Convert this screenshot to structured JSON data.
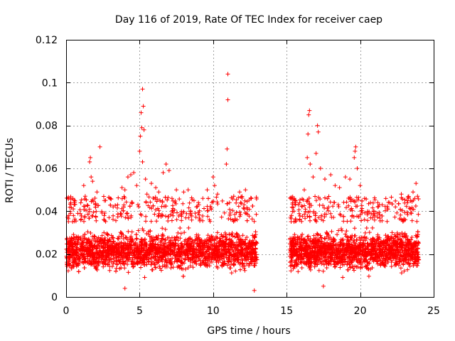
{
  "chart_data": {
    "type": "scatter",
    "title": "Day 116 of 2019, Rate Of TEC Index for receiver caep",
    "xlabel": "GPS time / hours",
    "ylabel": "ROTI / TECUs",
    "xlim": [
      0,
      25
    ],
    "ylim": [
      0,
      0.12
    ],
    "xticks": [
      0,
      5,
      10,
      15,
      20,
      25
    ],
    "xtick_labels": [
      "0",
      "5",
      "10",
      "15",
      "20",
      "25"
    ],
    "yticks": [
      0,
      0.02,
      0.04,
      0.06,
      0.08,
      0.1,
      0.12
    ],
    "ytick_labels": [
      "0",
      "0.02",
      "0.04",
      "0.06",
      "0.08",
      "0.1",
      "0.12"
    ],
    "grid": true,
    "marker": "+",
    "color": "#ff0000",
    "data_gap_hours": [
      13.0,
      15.2
    ],
    "series": [
      {
        "name": "ROTI",
        "density_segments": [
          {
            "x_start": 0.0,
            "x_end": 13.0,
            "typical_range": [
              0.008,
              0.035
            ],
            "count": 2600
          },
          {
            "x_start": 15.2,
            "x_end": 24.0,
            "typical_range": [
              0.008,
              0.035
            ],
            "count": 1800
          }
        ],
        "spikes": [
          {
            "x": 0.3,
            "y": 0.039
          },
          {
            "x": 0.5,
            "y": 0.038
          },
          {
            "x": 0.8,
            "y": 0.039
          },
          {
            "x": 1.2,
            "y": 0.052
          },
          {
            "x": 1.3,
            "y": 0.047
          },
          {
            "x": 1.6,
            "y": 0.063
          },
          {
            "x": 1.65,
            "y": 0.065
          },
          {
            "x": 1.7,
            "y": 0.056
          },
          {
            "x": 1.8,
            "y": 0.054
          },
          {
            "x": 2.3,
            "y": 0.07
          },
          {
            "x": 2.1,
            "y": 0.049
          },
          {
            "x": 2.6,
            "y": 0.045
          },
          {
            "x": 3.0,
            "y": 0.046
          },
          {
            "x": 3.2,
            "y": 0.042
          },
          {
            "x": 3.5,
            "y": 0.043
          },
          {
            "x": 3.8,
            "y": 0.051
          },
          {
            "x": 4.0,
            "y": 0.05
          },
          {
            "x": 4.2,
            "y": 0.056
          },
          {
            "x": 4.4,
            "y": 0.057
          },
          {
            "x": 4.6,
            "y": 0.058
          },
          {
            "x": 4.8,
            "y": 0.052
          },
          {
            "x": 5.0,
            "y": 0.068
          },
          {
            "x": 5.05,
            "y": 0.075
          },
          {
            "x": 5.1,
            "y": 0.086
          },
          {
            "x": 5.15,
            "y": 0.079
          },
          {
            "x": 5.2,
            "y": 0.097
          },
          {
            "x": 5.25,
            "y": 0.089
          },
          {
            "x": 5.3,
            "y": 0.078
          },
          {
            "x": 5.2,
            "y": 0.063
          },
          {
            "x": 5.4,
            "y": 0.055
          },
          {
            "x": 5.5,
            "y": 0.048
          },
          {
            "x": 5.8,
            "y": 0.053
          },
          {
            "x": 6.1,
            "y": 0.051
          },
          {
            "x": 6.3,
            "y": 0.049
          },
          {
            "x": 6.6,
            "y": 0.058
          },
          {
            "x": 6.8,
            "y": 0.062
          },
          {
            "x": 7.0,
            "y": 0.059
          },
          {
            "x": 7.2,
            "y": 0.046
          },
          {
            "x": 7.5,
            "y": 0.05
          },
          {
            "x": 8.0,
            "y": 0.049
          },
          {
            "x": 8.3,
            "y": 0.05
          },
          {
            "x": 8.7,
            "y": 0.045
          },
          {
            "x": 9.0,
            "y": 0.044
          },
          {
            "x": 9.3,
            "y": 0.046
          },
          {
            "x": 9.6,
            "y": 0.05
          },
          {
            "x": 10.0,
            "y": 0.056
          },
          {
            "x": 10.1,
            "y": 0.052
          },
          {
            "x": 10.3,
            "y": 0.048
          },
          {
            "x": 10.9,
            "y": 0.062
          },
          {
            "x": 10.95,
            "y": 0.069
          },
          {
            "x": 11.0,
            "y": 0.092
          },
          {
            "x": 11.0,
            "y": 0.104
          },
          {
            "x": 11.4,
            "y": 0.047
          },
          {
            "x": 11.8,
            "y": 0.049
          },
          {
            "x": 12.2,
            "y": 0.05
          },
          {
            "x": 12.6,
            "y": 0.046
          },
          {
            "x": 15.5,
            "y": 0.04
          },
          {
            "x": 15.8,
            "y": 0.043
          },
          {
            "x": 16.2,
            "y": 0.05
          },
          {
            "x": 16.4,
            "y": 0.065
          },
          {
            "x": 16.45,
            "y": 0.076
          },
          {
            "x": 16.5,
            "y": 0.085
          },
          {
            "x": 16.55,
            "y": 0.087
          },
          {
            "x": 16.6,
            "y": 0.062
          },
          {
            "x": 16.8,
            "y": 0.056
          },
          {
            "x": 17.0,
            "y": 0.067
          },
          {
            "x": 17.1,
            "y": 0.08
          },
          {
            "x": 17.15,
            "y": 0.077
          },
          {
            "x": 17.3,
            "y": 0.06
          },
          {
            "x": 17.6,
            "y": 0.055
          },
          {
            "x": 18.0,
            "y": 0.057
          },
          {
            "x": 18.3,
            "y": 0.052
          },
          {
            "x": 18.6,
            "y": 0.051
          },
          {
            "x": 19.0,
            "y": 0.056
          },
          {
            "x": 19.3,
            "y": 0.055
          },
          {
            "x": 19.6,
            "y": 0.065
          },
          {
            "x": 19.65,
            "y": 0.068
          },
          {
            "x": 19.7,
            "y": 0.07
          },
          {
            "x": 19.8,
            "y": 0.06
          },
          {
            "x": 20.0,
            "y": 0.052
          },
          {
            "x": 20.3,
            "y": 0.046
          },
          {
            "x": 20.7,
            "y": 0.044
          },
          {
            "x": 21.2,
            "y": 0.044
          },
          {
            "x": 21.5,
            "y": 0.043
          },
          {
            "x": 22.0,
            "y": 0.044
          },
          {
            "x": 22.4,
            "y": 0.042
          },
          {
            "x": 22.8,
            "y": 0.048
          },
          {
            "x": 23.2,
            "y": 0.045
          },
          {
            "x": 23.6,
            "y": 0.049
          },
          {
            "x": 23.8,
            "y": 0.053
          },
          {
            "x": 23.9,
            "y": 0.047
          },
          {
            "x": 4.0,
            "y": 0.004
          },
          {
            "x": 12.8,
            "y": 0.003
          },
          {
            "x": 17.5,
            "y": 0.005
          }
        ]
      }
    ]
  }
}
